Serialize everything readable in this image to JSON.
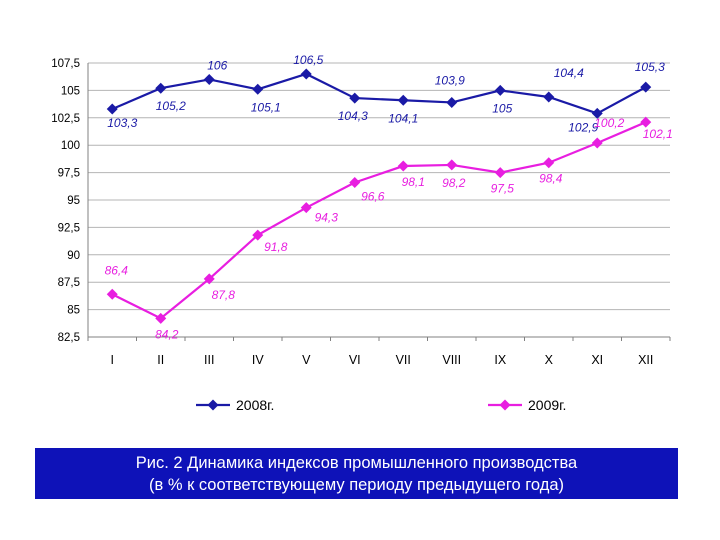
{
  "chart_data": {
    "type": "line",
    "categories": [
      "I",
      "II",
      "III",
      "IV",
      "V",
      "VI",
      "VII",
      "VIII",
      "IX",
      "X",
      "XI",
      "XII"
    ],
    "ylim": [
      82.5,
      107.5
    ],
    "yticks": [
      "82,5",
      "85",
      "87,5",
      "90",
      "92,5",
      "95",
      "97,5",
      "100",
      "102,5",
      "105",
      "107,5"
    ],
    "ytick_values": [
      82.5,
      85,
      87.5,
      90,
      92.5,
      95,
      97.5,
      100,
      102.5,
      105,
      107.5
    ],
    "grid": true,
    "legend_position": "bottom",
    "series": [
      {
        "name": "2008г.",
        "color": "#1a1aa6",
        "marker": "diamond",
        "values": [
          103.3,
          105.2,
          106,
          105.1,
          106.5,
          104.3,
          104.1,
          103.9,
          105,
          104.4,
          102.9,
          105.3
        ],
        "labels": [
          "103,3",
          "105,2",
          "106",
          "105,1",
          "106,5",
          "104,3",
          "104,1",
          "103,9",
          "105",
          "104,4",
          "102,9",
          "105,3"
        ]
      },
      {
        "name": "2009г.",
        "color": "#e81ee0",
        "marker": "diamond",
        "values": [
          86.4,
          84.2,
          87.8,
          91.8,
          94.3,
          96.6,
          98.1,
          98.2,
          97.5,
          98.4,
          100.2,
          102.1
        ],
        "labels": [
          "86,4",
          "84,2",
          "87,8",
          "91,8",
          "94,3",
          "96,6",
          "98,1",
          "98,2",
          "97,5",
          "98,4",
          "100,2",
          "102,1"
        ]
      }
    ]
  },
  "caption": {
    "line1": "Рис. 2 Динамика индексов промышленного производства",
    "line2": "(в % к соответствующему периоду предыдущего года)"
  }
}
